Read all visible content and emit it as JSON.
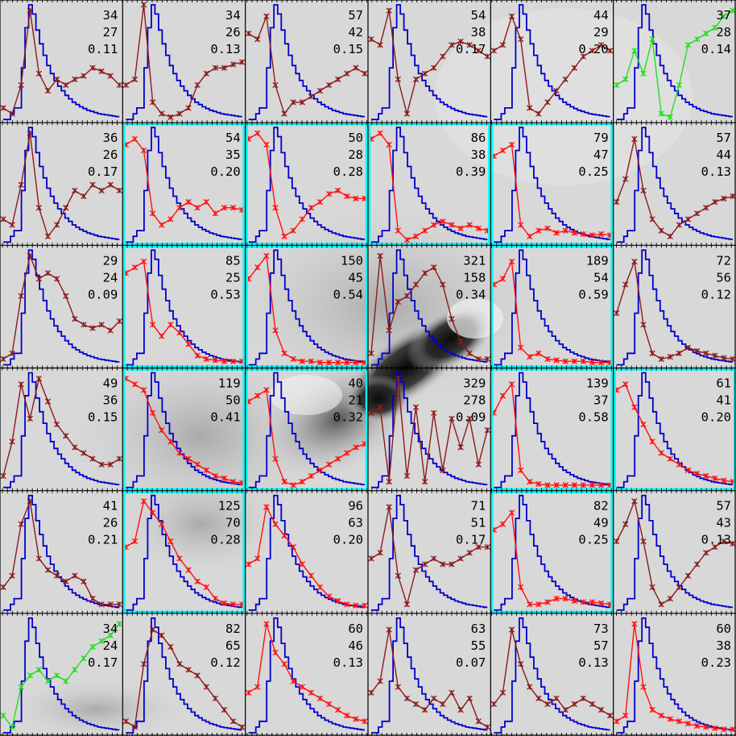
{
  "chart_data": {
    "type": "grid_of_line_plots",
    "rows": 6,
    "cols": 6,
    "colors": {
      "reference_curve": "#0000cc",
      "series_brown": "#8b1a1a",
      "series_red": "#ff1010",
      "series_green": "#22dd22",
      "highlight_box": "#00ffff",
      "grid_lines": "#000000"
    },
    "reference_curve": [
      0,
      0,
      0.05,
      0.1,
      0.1,
      0.45,
      0.8,
      1.0,
      0.92,
      0.78,
      0.66,
      0.56,
      0.47,
      0.4,
      0.34,
      0.29,
      0.25,
      0.21,
      0.18,
      0.15,
      0.13,
      0.11,
      0.095,
      0.08,
      0.07,
      0.06,
      0.05,
      0.045,
      0.04,
      0.035,
      0.03,
      0.025
    ],
    "cells": [
      {
        "row": 0,
        "col": 0,
        "labels": [
          "34",
          "27",
          "0.11"
        ],
        "highlight": false,
        "color": "brown",
        "series": [
          0.1,
          0.05,
          0.3,
          0.95,
          0.4,
          0.25,
          0.35,
          0.3,
          0.35,
          0.38,
          0.45,
          0.42,
          0.38,
          0.3
        ]
      },
      {
        "row": 0,
        "col": 1,
        "labels": [
          "34",
          "26",
          "0.13"
        ],
        "highlight": false,
        "color": "brown",
        "series": [
          0.3,
          0.35,
          1.0,
          0.15,
          0.05,
          0.02,
          0.05,
          0.1,
          0.3,
          0.4,
          0.45,
          0.45,
          0.48,
          0.5
        ]
      },
      {
        "row": 0,
        "col": 2,
        "labels": [
          "57",
          "42",
          "0.15"
        ],
        "highlight": false,
        "color": "brown",
        "series": [
          0.75,
          0.7,
          0.9,
          0.3,
          0.05,
          0.15,
          0.15,
          0.2,
          0.25,
          0.3,
          0.35,
          0.4,
          0.45,
          0.4
        ]
      },
      {
        "row": 0,
        "col": 3,
        "labels": [
          "54",
          "38",
          "0.17"
        ],
        "highlight": false,
        "color": "brown",
        "series": [
          0.7,
          0.65,
          0.95,
          0.35,
          0.05,
          0.35,
          0.4,
          0.45,
          0.55,
          0.65,
          0.68,
          0.65,
          0.6,
          0.55
        ]
      },
      {
        "row": 0,
        "col": 4,
        "labels": [
          "44",
          "29",
          "0.20"
        ],
        "highlight": false,
        "color": "brown",
        "series": [
          0.6,
          0.65,
          0.9,
          0.7,
          0.1,
          0.05,
          0.15,
          0.25,
          0.35,
          0.45,
          0.55,
          0.6,
          0.65,
          0.6
        ]
      },
      {
        "row": 0,
        "col": 5,
        "labels": [
          "37",
          "28",
          "0.14"
        ],
        "highlight": false,
        "color": "green",
        "series": [
          0.3,
          0.35,
          0.6,
          0.4,
          0.7,
          0.05,
          0.02,
          0.3,
          0.65,
          0.7,
          0.75,
          0.8,
          0.9,
          0.95
        ]
      },
      {
        "row": 1,
        "col": 0,
        "labels": [
          "36",
          "26",
          "0.17"
        ],
        "highlight": false,
        "color": "brown",
        "series": [
          0.2,
          0.15,
          0.5,
          0.95,
          0.3,
          0.05,
          0.15,
          0.3,
          0.45,
          0.4,
          0.5,
          0.45,
          0.5,
          0.45
        ]
      },
      {
        "row": 1,
        "col": 1,
        "labels": [
          "54",
          "35",
          "0.20"
        ],
        "highlight": true,
        "color": "red",
        "series": [
          0.85,
          0.9,
          0.8,
          0.25,
          0.15,
          0.2,
          0.3,
          0.35,
          0.3,
          0.35,
          0.25,
          0.3,
          0.3,
          0.28
        ]
      },
      {
        "row": 1,
        "col": 2,
        "labels": [
          "50",
          "28",
          "0.28"
        ],
        "highlight": true,
        "color": "red",
        "series": [
          0.9,
          0.95,
          0.85,
          0.3,
          0.05,
          0.1,
          0.2,
          0.3,
          0.35,
          0.42,
          0.45,
          0.4,
          0.38,
          0.38
        ]
      },
      {
        "row": 1,
        "col": 3,
        "labels": [
          "86",
          "38",
          "0.39"
        ],
        "highlight": true,
        "color": "red",
        "series": [
          0.9,
          0.95,
          0.85,
          0.1,
          0.02,
          0.05,
          0.1,
          0.15,
          0.18,
          0.15,
          0.12,
          0.15,
          0.12,
          0.1
        ]
      },
      {
        "row": 1,
        "col": 4,
        "labels": [
          "79",
          "47",
          "0.25"
        ],
        "highlight": true,
        "color": "red",
        "series": [
          0.75,
          0.8,
          0.85,
          0.15,
          0.05,
          0.1,
          0.12,
          0.08,
          0.1,
          0.08,
          0.07,
          0.06,
          0.07,
          0.06
        ]
      },
      {
        "row": 1,
        "col": 5,
        "labels": [
          "57",
          "44",
          "0.13"
        ],
        "highlight": false,
        "color": "brown",
        "series": [
          0.35,
          0.55,
          0.9,
          0.45,
          0.2,
          0.1,
          0.05,
          0.15,
          0.2,
          0.25,
          0.3,
          0.35,
          0.38,
          0.4
        ]
      },
      {
        "row": 2,
        "col": 0,
        "labels": [
          "29",
          "24",
          "0.09"
        ],
        "highlight": false,
        "color": "brown",
        "series": [
          0.05,
          0.1,
          0.6,
          0.95,
          0.75,
          0.8,
          0.75,
          0.6,
          0.4,
          0.35,
          0.32,
          0.35,
          0.3,
          0.38
        ]
      },
      {
        "row": 2,
        "col": 1,
        "labels": [
          "85",
          "25",
          "0.53"
        ],
        "highlight": true,
        "color": "red",
        "series": [
          0.8,
          0.85,
          0.9,
          0.35,
          0.25,
          0.35,
          0.28,
          0.18,
          0.08,
          0.05,
          0.04,
          0.03,
          0.03,
          0.03
        ]
      },
      {
        "row": 2,
        "col": 2,
        "labels": [
          "150",
          "45",
          "0.54"
        ],
        "highlight": true,
        "color": "red",
        "series": [
          0.75,
          0.85,
          0.95,
          0.3,
          0.1,
          0.05,
          0.03,
          0.03,
          0.02,
          0.02,
          0.02,
          0.02,
          0.02,
          0.02
        ]
      },
      {
        "row": 2,
        "col": 3,
        "labels": [
          "321",
          "158",
          "0.34"
        ],
        "highlight": false,
        "color": "brown",
        "series": [
          0.1,
          0.95,
          0.3,
          0.55,
          0.6,
          0.7,
          0.8,
          0.85,
          0.7,
          0.4,
          0.2,
          0.1,
          0.05,
          0.05
        ]
      },
      {
        "row": 2,
        "col": 4,
        "labels": [
          "189",
          "54",
          "0.59"
        ],
        "highlight": true,
        "color": "red",
        "series": [
          0.7,
          0.75,
          0.9,
          0.15,
          0.07,
          0.1,
          0.05,
          0.04,
          0.03,
          0.03,
          0.03,
          0.02,
          0.02,
          0.02
        ]
      },
      {
        "row": 2,
        "col": 5,
        "labels": [
          "72",
          "56",
          "0.12"
        ],
        "highlight": false,
        "color": "brown",
        "series": [
          0.45,
          0.7,
          0.9,
          0.35,
          0.1,
          0.05,
          0.07,
          0.1,
          0.15,
          0.12,
          0.1,
          0.08,
          0.06,
          0.05
        ]
      },
      {
        "row": 3,
        "col": 0,
        "labels": [
          "49",
          "36",
          "0.15"
        ],
        "highlight": false,
        "color": "brown",
        "series": [
          0.1,
          0.4,
          0.9,
          0.6,
          0.95,
          0.75,
          0.55,
          0.45,
          0.35,
          0.3,
          0.25,
          0.2,
          0.2,
          0.25
        ]
      },
      {
        "row": 3,
        "col": 1,
        "labels": [
          "119",
          "50",
          "0.41"
        ],
        "highlight": true,
        "color": "red",
        "series": [
          0.95,
          0.9,
          0.85,
          0.65,
          0.5,
          0.4,
          0.3,
          0.25,
          0.2,
          0.15,
          0.1,
          0.08,
          0.05,
          0.04
        ]
      },
      {
        "row": 3,
        "col": 2,
        "labels": [
          "40",
          "21",
          "0.32"
        ],
        "highlight": true,
        "color": "red",
        "series": [
          0.75,
          0.8,
          0.85,
          0.25,
          0.05,
          0.02,
          0.05,
          0.1,
          0.15,
          0.2,
          0.25,
          0.3,
          0.35,
          0.38
        ]
      },
      {
        "row": 3,
        "col": 3,
        "labels": [
          "329",
          "278",
          "0.09"
        ],
        "highlight": false,
        "color": "brown",
        "series": [
          0.65,
          0.7,
          0.05,
          0.95,
          0.1,
          0.7,
          0.05,
          0.65,
          0.15,
          0.6,
          0.35,
          0.6,
          0.2,
          0.5
        ]
      },
      {
        "row": 3,
        "col": 4,
        "labels": [
          "139",
          "37",
          "0.58"
        ],
        "highlight": true,
        "color": "red",
        "series": [
          0.65,
          0.8,
          0.9,
          0.15,
          0.05,
          0.03,
          0.02,
          0.02,
          0.02,
          0.02,
          0.02,
          0.02,
          0.02,
          0.02
        ]
      },
      {
        "row": 3,
        "col": 5,
        "labels": [
          "61",
          "41",
          "0.20"
        ],
        "highlight": true,
        "color": "red",
        "series": [
          0.85,
          0.9,
          0.7,
          0.55,
          0.4,
          0.3,
          0.25,
          0.2,
          0.15,
          0.12,
          0.1,
          0.08,
          0.06,
          0.05
        ]
      },
      {
        "row": 4,
        "col": 0,
        "labels": [
          "41",
          "26",
          "0.21"
        ],
        "highlight": false,
        "color": "brown",
        "series": [
          0.2,
          0.3,
          0.75,
          0.95,
          0.45,
          0.35,
          0.3,
          0.25,
          0.3,
          0.25,
          0.1,
          0.05,
          0.05,
          0.05
        ]
      },
      {
        "row": 4,
        "col": 1,
        "labels": [
          "125",
          "70",
          "0.28"
        ],
        "highlight": true,
        "color": "red",
        "series": [
          0.55,
          0.6,
          0.95,
          0.85,
          0.75,
          0.6,
          0.45,
          0.35,
          0.25,
          0.2,
          0.1,
          0.06,
          0.05,
          0.05
        ]
      },
      {
        "row": 4,
        "col": 2,
        "labels": [
          "96",
          "63",
          "0.20"
        ],
        "highlight": false,
        "color": "red",
        "series": [
          0.4,
          0.45,
          0.9,
          0.75,
          0.65,
          0.55,
          0.4,
          0.3,
          0.2,
          0.12,
          0.08,
          0.05,
          0.04,
          0.04
        ]
      },
      {
        "row": 4,
        "col": 3,
        "labels": [
          "71",
          "51",
          "0.17"
        ],
        "highlight": false,
        "color": "brown",
        "series": [
          0.45,
          0.5,
          0.9,
          0.3,
          0.05,
          0.35,
          0.4,
          0.45,
          0.4,
          0.4,
          0.45,
          0.5,
          0.55,
          0.55
        ]
      },
      {
        "row": 4,
        "col": 4,
        "labels": [
          "82",
          "49",
          "0.25"
        ],
        "highlight": true,
        "color": "red",
        "series": [
          0.7,
          0.75,
          0.85,
          0.2,
          0.05,
          0.05,
          0.07,
          0.1,
          0.1,
          0.08,
          0.07,
          0.07,
          0.06,
          0.05
        ]
      },
      {
        "row": 4,
        "col": 5,
        "labels": [
          "57",
          "43",
          "0.13"
        ],
        "highlight": false,
        "color": "brown",
        "series": [
          0.6,
          0.75,
          0.95,
          0.6,
          0.2,
          0.05,
          0.1,
          0.2,
          0.3,
          0.4,
          0.5,
          0.55,
          0.6,
          0.58
        ]
      },
      {
        "row": 5,
        "col": 0,
        "labels": [
          "34",
          "24",
          "0.17"
        ],
        "highlight": false,
        "color": "green",
        "series": [
          0.15,
          0.05,
          0.4,
          0.5,
          0.55,
          0.45,
          0.5,
          0.45,
          0.55,
          0.65,
          0.75,
          0.8,
          0.85,
          0.95
        ]
      },
      {
        "row": 5,
        "col": 1,
        "labels": [
          "82",
          "65",
          "0.12"
        ],
        "highlight": false,
        "color": "brown",
        "series": [
          0.1,
          0.05,
          0.6,
          0.9,
          0.85,
          0.75,
          0.6,
          0.55,
          0.5,
          0.4,
          0.3,
          0.2,
          0.1,
          0.05
        ]
      },
      {
        "row": 5,
        "col": 2,
        "labels": [
          "60",
          "46",
          "0.13"
        ],
        "highlight": false,
        "color": "red",
        "series": [
          0.35,
          0.4,
          0.95,
          0.7,
          0.6,
          0.45,
          0.4,
          0.35,
          0.3,
          0.25,
          0.2,
          0.15,
          0.12,
          0.1
        ]
      },
      {
        "row": 5,
        "col": 3,
        "labels": [
          "63",
          "55",
          "0.07"
        ],
        "highlight": false,
        "color": "brown",
        "series": [
          0.35,
          0.45,
          0.9,
          0.4,
          0.3,
          0.25,
          0.2,
          0.3,
          0.25,
          0.35,
          0.2,
          0.3,
          0.1,
          0.05
        ]
      },
      {
        "row": 5,
        "col": 4,
        "labels": [
          "73",
          "57",
          "0.13"
        ],
        "highlight": false,
        "color": "brown",
        "series": [
          0.25,
          0.35,
          0.9,
          0.6,
          0.4,
          0.3,
          0.25,
          0.3,
          0.2,
          0.25,
          0.3,
          0.25,
          0.2,
          0.15
        ]
      },
      {
        "row": 5,
        "col": 5,
        "labels": [
          "60",
          "38",
          "0.23"
        ],
        "highlight": false,
        "color": "red",
        "series": [
          0.1,
          0.15,
          0.95,
          0.4,
          0.2,
          0.15,
          0.12,
          0.1,
          0.08,
          0.06,
          0.05,
          0.04,
          0.03,
          0.03
        ]
      }
    ]
  }
}
